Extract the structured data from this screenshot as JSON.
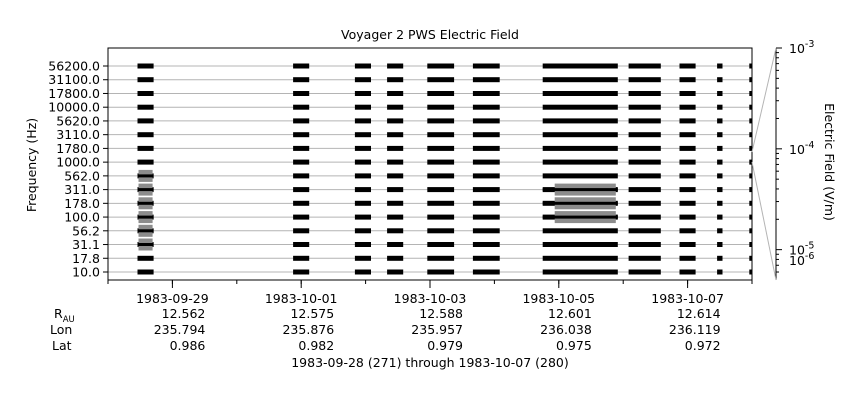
{
  "chart_data": {
    "type": "heatmap",
    "title": "Voyager 2 PWS Electric Field",
    "ylabel": "Frequency (Hz)",
    "colorbar_label": "Electric Field (V/m)",
    "y_channels": [
      "10.0",
      "17.8",
      "31.1",
      "56.2",
      "100.0",
      "178.0",
      "311.0",
      "562.0",
      "1000.0",
      "1780.0",
      "3110.0",
      "5620.0",
      "10000.0",
      "17800.0",
      "31100.0",
      "56200.0"
    ],
    "y_tick_labels": [
      "10.0",
      "17.8",
      "31.1",
      "56.2",
      "100.0",
      "178.0",
      "311.0",
      "562.0",
      "1000.0",
      "1780.0",
      "3110.0",
      "5620.0",
      "10000.0",
      "17800.0",
      "31100.0",
      "56200.0"
    ],
    "x_range": [
      "1983-09-28",
      "1983-10-08"
    ],
    "x_tick_dates": [
      "1983-09-29",
      "1983-10-01",
      "1983-10-03",
      "1983-10-05",
      "1983-10-07"
    ],
    "colorbar": {
      "scale": "log",
      "range": [
        5e-06,
        0.001
      ],
      "major_ticks": [
        1e-06,
        1e-05,
        0.0001,
        0.001
      ]
    },
    "colorbar_tick_labels": [
      {
        "value": 0.001,
        "base": "10",
        "exp": "-3"
      },
      {
        "value": 0.0001,
        "base": "10",
        "exp": "-4"
      },
      {
        "value": 1e-05,
        "base": "10",
        "exp": "-5"
      },
      {
        "value": 1e-06,
        "base": "10",
        "exp": "-6"
      }
    ],
    "data_segments": [
      {
        "start": "1983-09-28 11:00",
        "end": "1983-09-28 17:00",
        "high_activity_channels": [
          "31.1",
          "56.2",
          "100.0",
          "178.0",
          "311.0",
          "562.0"
        ]
      },
      {
        "start": "1983-09-30 21:00",
        "end": "1983-10-01 03:00",
        "high_activity_channels": []
      },
      {
        "start": "1983-10-01 20:00",
        "end": "1983-10-02 02:00",
        "high_activity_channels": []
      },
      {
        "start": "1983-10-02 08:00",
        "end": "1983-10-02 14:00",
        "high_activity_channels": []
      },
      {
        "start": "1983-10-02 23:00",
        "end": "1983-10-03 09:00",
        "high_activity_channels": []
      },
      {
        "start": "1983-10-03 16:00",
        "end": "1983-10-04 02:00",
        "high_activity_channels": []
      },
      {
        "start": "1983-10-04 18:00",
        "end": "1983-10-05 22:00",
        "high_activity_channels": [
          "100.0",
          "178.0",
          "311.0"
        ]
      },
      {
        "start": "1983-10-06 02:00",
        "end": "1983-10-06 14:00",
        "high_activity_channels": []
      },
      {
        "start": "1983-10-06 21:00",
        "end": "1983-10-07 03:00",
        "high_activity_channels": []
      },
      {
        "start": "1983-10-07 11:00",
        "end": "1983-10-07 13:00",
        "high_activity_channels": []
      },
      {
        "start": "1983-10-07 23:00",
        "end": "1983-10-08 00:00",
        "high_activity_channels": []
      }
    ],
    "ephemeris": {
      "row_labels": {
        "r_main": "R",
        "r_sub": "AU",
        "lon": "Lon",
        "lat": "Lat"
      },
      "columns": [
        {
          "date": "1983-09-29",
          "r_au": "12.562",
          "lon": "235.794",
          "lat": "0.986"
        },
        {
          "date": "1983-10-01",
          "r_au": "12.575",
          "lon": "235.876",
          "lat": "0.982"
        },
        {
          "date": "1983-10-03",
          "r_au": "12.588",
          "lon": "235.957",
          "lat": "0.979"
        },
        {
          "date": "1983-10-05",
          "r_au": "12.601",
          "lon": "236.038",
          "lat": "0.975"
        },
        {
          "date": "1983-10-07",
          "r_au": "12.614",
          "lon": "236.119",
          "lat": "0.972"
        }
      ]
    },
    "date_range_label": "1983-09-28 (271) through 1983-10-07 (280)"
  }
}
